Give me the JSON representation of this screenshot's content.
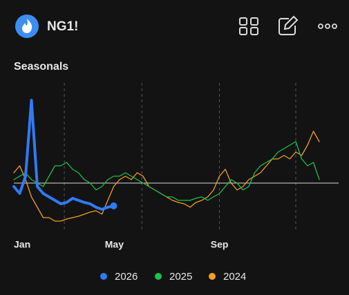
{
  "header": {
    "title": "NG1!"
  },
  "chart_data": {
    "type": "line",
    "title": "Seasonals",
    "x": [
      0,
      1,
      2,
      3,
      4,
      5,
      6,
      7,
      8,
      9,
      10,
      11,
      12,
      13,
      14,
      15,
      16,
      17,
      18,
      19,
      20,
      21,
      22,
      23,
      24,
      25,
      26,
      27,
      28,
      29,
      30,
      31,
      32,
      33,
      34,
      35,
      36,
      37,
      38,
      39,
      40,
      41,
      42,
      43,
      44,
      45,
      46,
      47,
      48,
      49,
      50,
      51,
      52
    ],
    "xlim": [
      0,
      52
    ],
    "xticks": [
      {
        "value": 0,
        "label": "Jan"
      },
      {
        "value": 15.5,
        "label": "May"
      },
      {
        "value": 33.5,
        "label": "Sep"
      }
    ],
    "xgrid": [
      8.6,
      21.8,
      35,
      48
    ],
    "ylim": [
      -60,
      140
    ],
    "reference_line": 0,
    "series": [
      {
        "name": "2026",
        "color": "#2f7bf5",
        "values": [
          -5,
          -15,
          10,
          120,
          -5,
          -15,
          -20,
          -25,
          -30,
          -28,
          -22,
          -25,
          -28,
          -30,
          -35,
          -38,
          -35,
          -33,
          null,
          null,
          null,
          null,
          null,
          null,
          null,
          null,
          null,
          null,
          null,
          null,
          null,
          null,
          null,
          null,
          null,
          null,
          null,
          null,
          null,
          null,
          null,
          null,
          null,
          null,
          null,
          null,
          null,
          null,
          null,
          null,
          null,
          null,
          null
        ]
      },
      {
        "name": "2025",
        "color": "#1fc14a",
        "values": [
          5,
          10,
          15,
          5,
          0,
          -5,
          10,
          25,
          25,
          30,
          20,
          15,
          5,
          0,
          -10,
          -5,
          5,
          10,
          10,
          15,
          10,
          5,
          0,
          -5,
          -10,
          -15,
          -20,
          -20,
          -25,
          -25,
          -25,
          -22,
          -20,
          -25,
          -20,
          -15,
          -5,
          5,
          0,
          -10,
          -5,
          15,
          25,
          30,
          35,
          45,
          50,
          55,
          60,
          35,
          25,
          30,
          5
        ]
      },
      {
        "name": "2024",
        "color": "#f5a020",
        "values": [
          15,
          25,
          5,
          -20,
          -35,
          -50,
          -50,
          -55,
          -55,
          -52,
          -50,
          -48,
          -45,
          -42,
          -40,
          -45,
          -25,
          -5,
          5,
          10,
          5,
          15,
          10,
          -5,
          -10,
          -15,
          -20,
          -25,
          -28,
          -30,
          -35,
          -28,
          -25,
          -20,
          -10,
          10,
          20,
          0,
          -10,
          -5,
          5,
          10,
          15,
          25,
          35,
          35,
          40,
          35,
          45,
          40,
          55,
          75,
          60
        ]
      }
    ]
  }
}
